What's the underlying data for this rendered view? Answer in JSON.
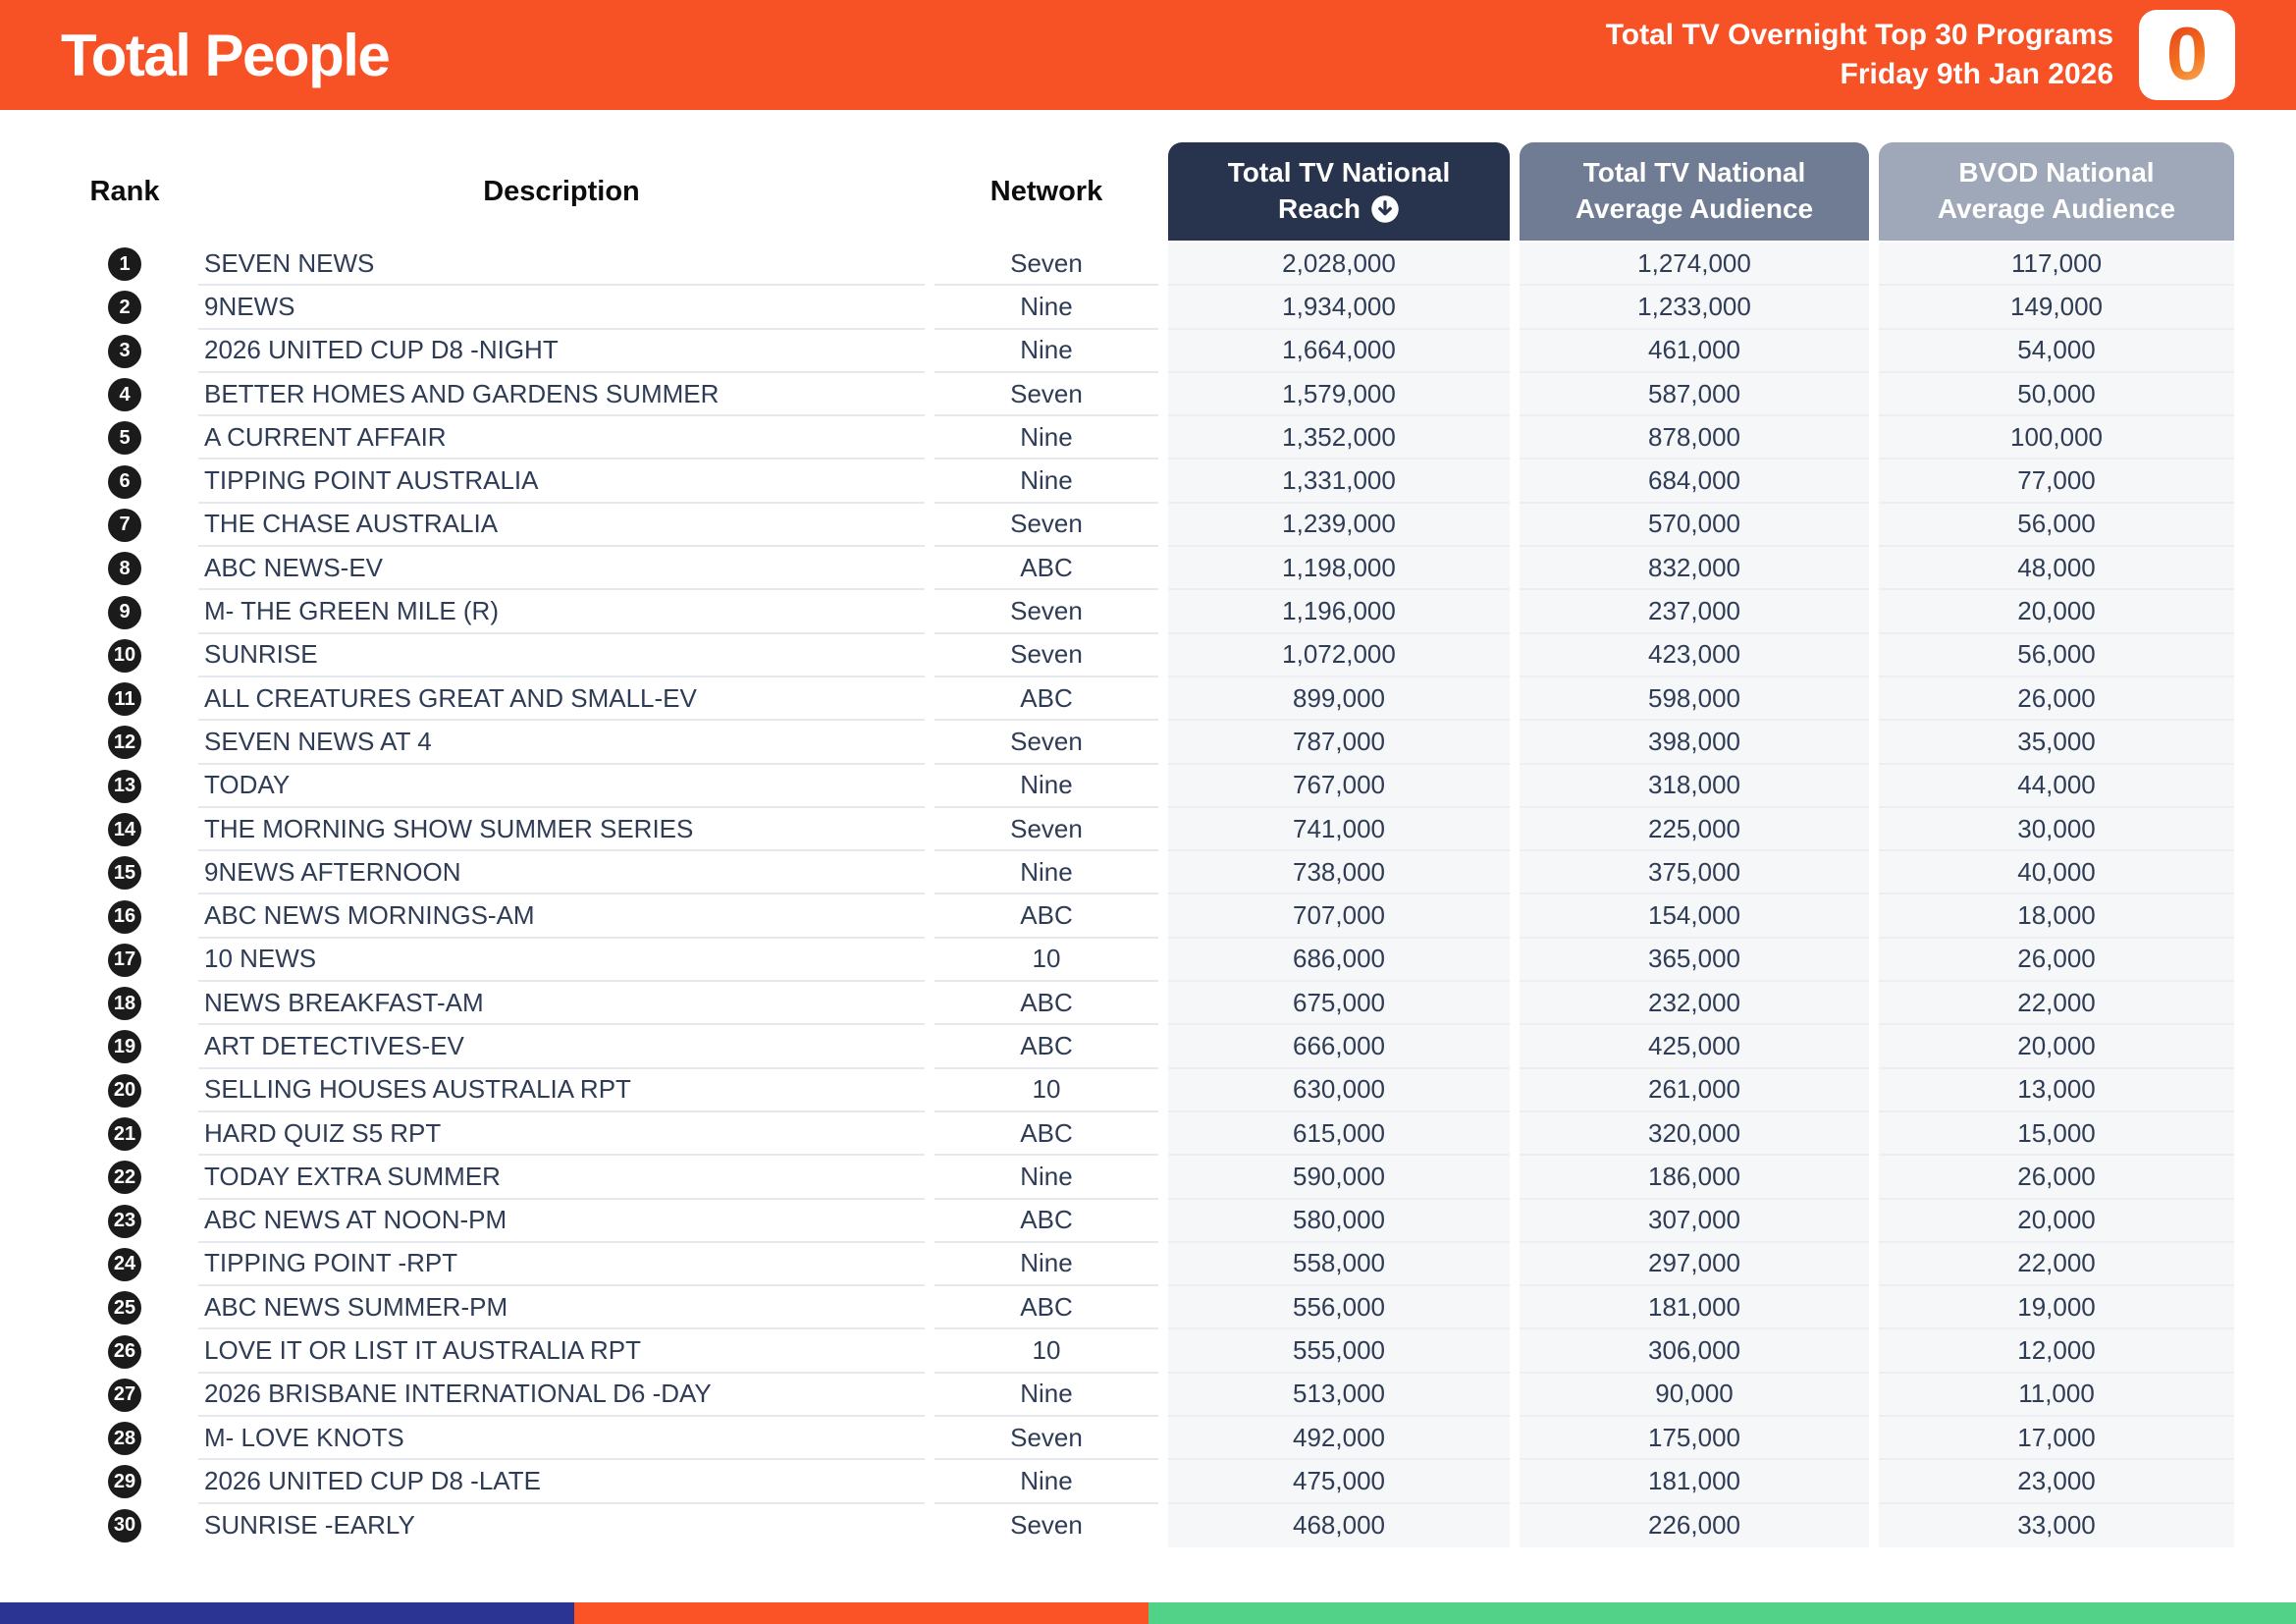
{
  "header": {
    "title": "Total People",
    "report_title": "Total TV Overnight Top 30 Programs",
    "report_date": "Friday 9th Jan 2026",
    "logo_character": "0"
  },
  "colors": {
    "header_bg": "#F75126",
    "reach_header_bg": "#28344E",
    "avg_header_bg": "#6F7C93",
    "bvod_header_bg": "#9EA8B8",
    "row_text": "#2F3C55",
    "rank_badge_bg": "#1B1B1B",
    "number_cell_bg": "#F6F7F9"
  },
  "table_headers": {
    "rank": "Rank",
    "description": "Description",
    "network": "Network",
    "reach_line1": "Total TV National",
    "reach_line2": "Reach",
    "avg_line1": "Total TV National",
    "avg_line2": "Average Audience",
    "bvod_line1": "BVOD National",
    "bvod_line2": "Average Audience"
  },
  "chart_data": {
    "type": "table",
    "title": "Total People",
    "subtitle": "Total TV Overnight Top 30 Programs",
    "date": "Friday 9th Jan 2026",
    "columns": [
      "Rank",
      "Description",
      "Network",
      "Total TV National Reach",
      "Total TV National Average Audience",
      "BVOD National Average Audience"
    ],
    "sort": {
      "column": "Total TV National Reach",
      "direction": "desc"
    },
    "rows": [
      {
        "rank": 1,
        "description": "SEVEN NEWS",
        "network": "Seven",
        "reach": 2028000,
        "avg": 1274000,
        "bvod": 117000
      },
      {
        "rank": 2,
        "description": "9NEWS",
        "network": "Nine",
        "reach": 1934000,
        "avg": 1233000,
        "bvod": 149000
      },
      {
        "rank": 3,
        "description": "2026 UNITED CUP D8 -NIGHT",
        "network": "Nine",
        "reach": 1664000,
        "avg": 461000,
        "bvod": 54000
      },
      {
        "rank": 4,
        "description": "BETTER HOMES AND GARDENS SUMMER",
        "network": "Seven",
        "reach": 1579000,
        "avg": 587000,
        "bvod": 50000
      },
      {
        "rank": 5,
        "description": "A CURRENT AFFAIR",
        "network": "Nine",
        "reach": 1352000,
        "avg": 878000,
        "bvod": 100000
      },
      {
        "rank": 6,
        "description": "TIPPING POINT AUSTRALIA",
        "network": "Nine",
        "reach": 1331000,
        "avg": 684000,
        "bvod": 77000
      },
      {
        "rank": 7,
        "description": "THE CHASE AUSTRALIA",
        "network": "Seven",
        "reach": 1239000,
        "avg": 570000,
        "bvod": 56000
      },
      {
        "rank": 8,
        "description": "ABC NEWS-EV",
        "network": "ABC",
        "reach": 1198000,
        "avg": 832000,
        "bvod": 48000
      },
      {
        "rank": 9,
        "description": "M- THE GREEN MILE (R)",
        "network": "Seven",
        "reach": 1196000,
        "avg": 237000,
        "bvod": 20000
      },
      {
        "rank": 10,
        "description": "SUNRISE",
        "network": "Seven",
        "reach": 1072000,
        "avg": 423000,
        "bvod": 56000
      },
      {
        "rank": 11,
        "description": "ALL CREATURES GREAT AND SMALL-EV",
        "network": "ABC",
        "reach": 899000,
        "avg": 598000,
        "bvod": 26000
      },
      {
        "rank": 12,
        "description": "SEVEN NEWS AT 4",
        "network": "Seven",
        "reach": 787000,
        "avg": 398000,
        "bvod": 35000
      },
      {
        "rank": 13,
        "description": "TODAY",
        "network": "Nine",
        "reach": 767000,
        "avg": 318000,
        "bvod": 44000
      },
      {
        "rank": 14,
        "description": "THE MORNING SHOW SUMMER SERIES",
        "network": "Seven",
        "reach": 741000,
        "avg": 225000,
        "bvod": 30000
      },
      {
        "rank": 15,
        "description": "9NEWS AFTERNOON",
        "network": "Nine",
        "reach": 738000,
        "avg": 375000,
        "bvod": 40000
      },
      {
        "rank": 16,
        "description": "ABC NEWS MORNINGS-AM",
        "network": "ABC",
        "reach": 707000,
        "avg": 154000,
        "bvod": 18000
      },
      {
        "rank": 17,
        "description": "10 NEWS",
        "network": "10",
        "reach": 686000,
        "avg": 365000,
        "bvod": 26000
      },
      {
        "rank": 18,
        "description": "NEWS BREAKFAST-AM",
        "network": "ABC",
        "reach": 675000,
        "avg": 232000,
        "bvod": 22000
      },
      {
        "rank": 19,
        "description": "ART DETECTIVES-EV",
        "network": "ABC",
        "reach": 666000,
        "avg": 425000,
        "bvod": 20000
      },
      {
        "rank": 20,
        "description": "SELLING HOUSES AUSTRALIA RPT",
        "network": "10",
        "reach": 630000,
        "avg": 261000,
        "bvod": 13000
      },
      {
        "rank": 21,
        "description": "HARD QUIZ S5 RPT",
        "network": "ABC",
        "reach": 615000,
        "avg": 320000,
        "bvod": 15000
      },
      {
        "rank": 22,
        "description": "TODAY EXTRA SUMMER",
        "network": "Nine",
        "reach": 590000,
        "avg": 186000,
        "bvod": 26000
      },
      {
        "rank": 23,
        "description": "ABC NEWS AT NOON-PM",
        "network": "ABC",
        "reach": 580000,
        "avg": 307000,
        "bvod": 20000
      },
      {
        "rank": 24,
        "description": "TIPPING POINT -RPT",
        "network": "Nine",
        "reach": 558000,
        "avg": 297000,
        "bvod": 22000
      },
      {
        "rank": 25,
        "description": "ABC NEWS SUMMER-PM",
        "network": "ABC",
        "reach": 556000,
        "avg": 181000,
        "bvod": 19000
      },
      {
        "rank": 26,
        "description": "LOVE IT OR LIST IT AUSTRALIA RPT",
        "network": "10",
        "reach": 555000,
        "avg": 306000,
        "bvod": 12000
      },
      {
        "rank": 27,
        "description": "2026 BRISBANE INTERNATIONAL D6 -DAY",
        "network": "Nine",
        "reach": 513000,
        "avg": 90000,
        "bvod": 11000
      },
      {
        "rank": 28,
        "description": "M- LOVE KNOTS",
        "network": "Seven",
        "reach": 492000,
        "avg": 175000,
        "bvod": 17000
      },
      {
        "rank": 29,
        "description": "2026 UNITED CUP D8 -LATE",
        "network": "Nine",
        "reach": 475000,
        "avg": 181000,
        "bvod": 23000
      },
      {
        "rank": 30,
        "description": "SUNRISE -EARLY",
        "network": "Seven",
        "reach": 468000,
        "avg": 226000,
        "bvod": 33000
      }
    ]
  },
  "footer": {
    "segments": [
      {
        "name": "blue",
        "color": "#2B3492",
        "width_pct": 25
      },
      {
        "name": "orange",
        "color": "#FB5226",
        "width_pct": 25
      },
      {
        "name": "green",
        "color": "#52D189",
        "width_pct": 50
      }
    ]
  }
}
